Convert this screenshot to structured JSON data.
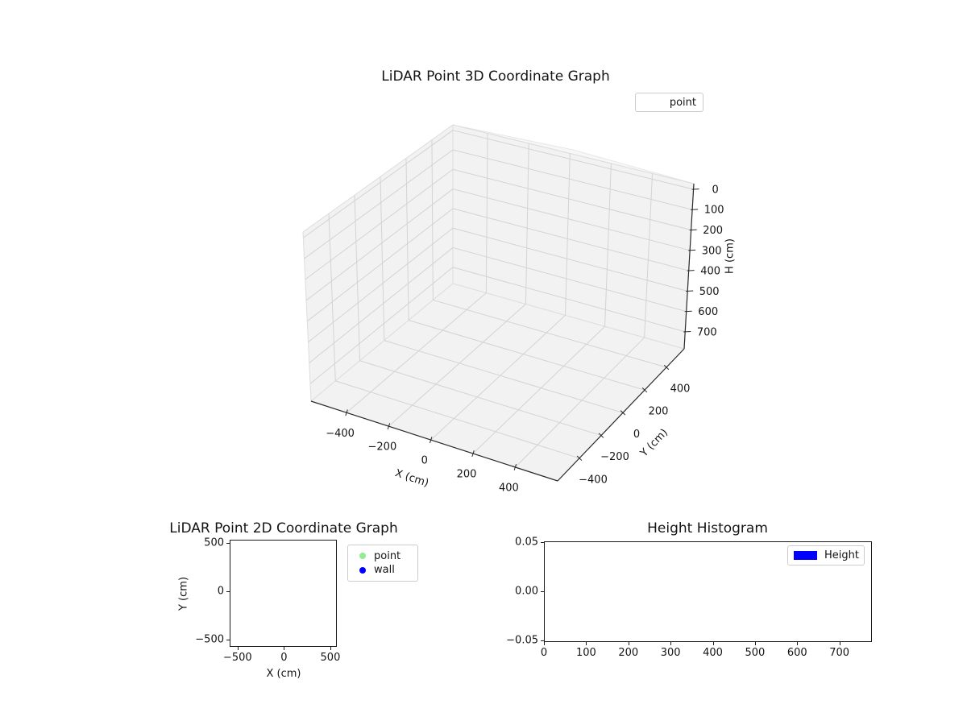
{
  "chart_data": [
    {
      "id": "lidar-3d",
      "type": "scatter3d",
      "title": "LiDAR Point 3D Coordinate Graph",
      "xlabel": "X (cm)",
      "ylabel": "Y (cm)",
      "zlabel": "H (cm)",
      "xticks": [
        "−400",
        "−200",
        "0",
        "200",
        "400"
      ],
      "yticks": [
        "−400",
        "−200",
        "0",
        "200",
        "400"
      ],
      "zticks": [
        "0",
        "100",
        "200",
        "300",
        "400",
        "500",
        "600",
        "700"
      ],
      "zaxis_inverted": true,
      "grid": true,
      "pane_color": "#f2f2f2",
      "legend": [
        {
          "label": "point",
          "marker": "none"
        }
      ],
      "legend_position": "upper right",
      "series": [
        {
          "name": "point",
          "points": []
        }
      ]
    },
    {
      "id": "lidar-2d",
      "type": "scatter",
      "title": "LiDAR Point 2D Coordinate Graph",
      "xlabel": "X (cm)",
      "ylabel": "Y (cm)",
      "xticks": [
        "−500",
        "0",
        "500"
      ],
      "xtick_values": [
        -500,
        0,
        500
      ],
      "yticks": [
        "500",
        "0",
        "−500"
      ],
      "ytick_values": [
        500,
        0,
        -500
      ],
      "xlim": [
        -585,
        570
      ],
      "ylim": [
        -575,
        535
      ],
      "grid": false,
      "legend": [
        {
          "label": "point",
          "color": "#90ee90",
          "marker": "circle"
        },
        {
          "label": "wall",
          "color": "#0000ff",
          "marker": "circle"
        }
      ],
      "series": [
        {
          "name": "point",
          "points": []
        },
        {
          "name": "wall",
          "points": []
        }
      ]
    },
    {
      "id": "height-histogram",
      "type": "bar",
      "title": "Height Histogram",
      "xticks": [
        "0",
        "100",
        "200",
        "300",
        "400",
        "500",
        "600",
        "700"
      ],
      "xtick_values": [
        0,
        100,
        200,
        300,
        400,
        500,
        600,
        700
      ],
      "yticks": [
        "0.05",
        "0.00",
        "−0.05"
      ],
      "ytick_values": [
        0.05,
        0.0,
        -0.05
      ],
      "xlim": [
        0,
        777
      ],
      "ylim": [
        -0.052,
        0.051
      ],
      "grid": false,
      "legend": [
        {
          "label": "Height",
          "color": "#0000ff",
          "marker": "rect"
        }
      ],
      "values": []
    }
  ]
}
